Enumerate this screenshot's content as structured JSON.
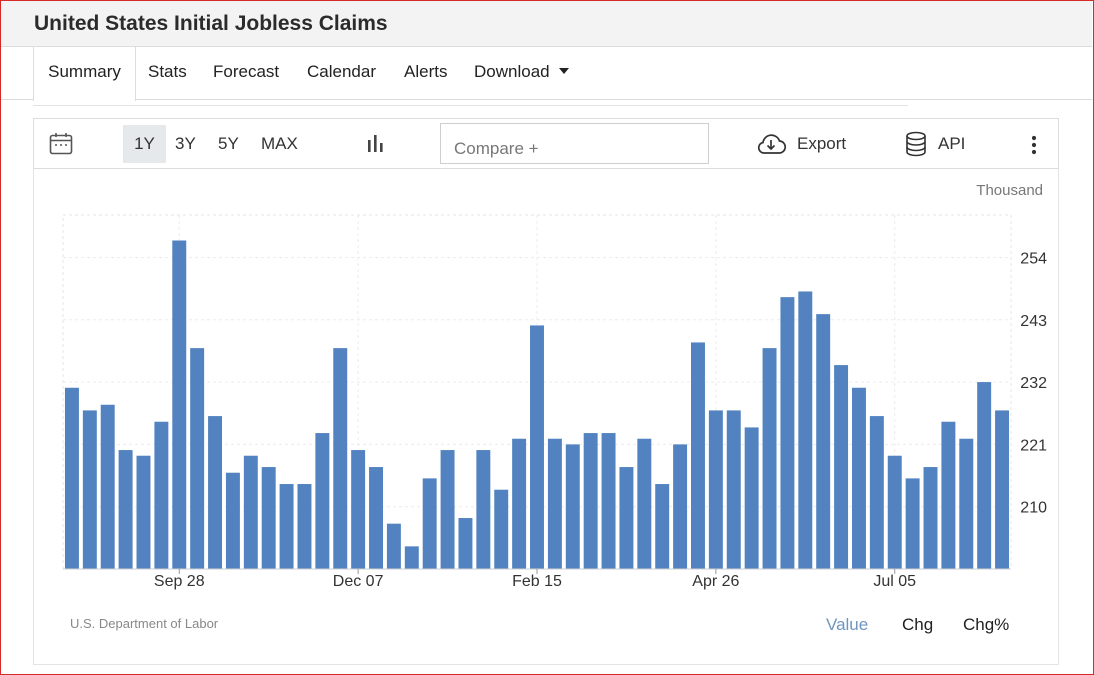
{
  "page": {
    "title": "United States Initial Jobless Claims"
  },
  "tabs": [
    {
      "label": "Summary",
      "active": true
    },
    {
      "label": "Stats"
    },
    {
      "label": "Forecast"
    },
    {
      "label": "Calendar"
    },
    {
      "label": "Alerts"
    },
    {
      "label": "Download"
    }
  ],
  "toolbar": {
    "ranges": [
      "1Y",
      "3Y",
      "5Y",
      "MAX"
    ],
    "selected_range": "1Y",
    "compare_placeholder": "Compare +",
    "export_label": "Export",
    "api_label": "API"
  },
  "chart_meta": {
    "unit": "Thousand",
    "source": "U.S. Department of Labor",
    "modes": [
      "Value",
      "Chg",
      "Chg%"
    ],
    "selected_mode": "Value",
    "bar_color": "#5283c0",
    "active_color": "#6f95c0"
  },
  "chart_data": {
    "type": "bar",
    "ylim": [
      199,
      261.5
    ],
    "yticks": [
      210,
      221,
      232,
      243,
      254
    ],
    "xtick_labels": [
      "Sep 28",
      "Dec 07",
      "Feb 15",
      "Apr 26",
      "Jul 05"
    ],
    "xtick_bar_index": [
      6,
      16,
      26,
      36,
      46
    ],
    "grid": true,
    "values": [
      231,
      227,
      228,
      220,
      219,
      225,
      257,
      238,
      226,
      216,
      219,
      217,
      214,
      214,
      223,
      238,
      220,
      217,
      207,
      203,
      215,
      220,
      208,
      220,
      213,
      222,
      242,
      222,
      221,
      223,
      223,
      217,
      222,
      214,
      221,
      239,
      227,
      227,
      224,
      238,
      247,
      248,
      244,
      235,
      231,
      226,
      219,
      215,
      217,
      225,
      222,
      232,
      227
    ]
  }
}
